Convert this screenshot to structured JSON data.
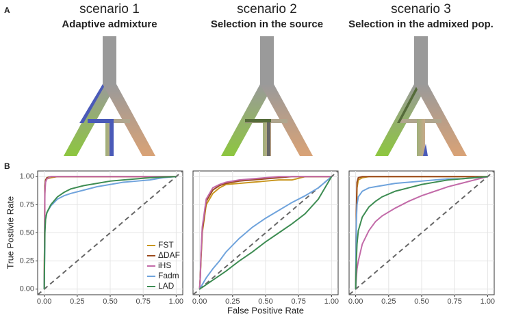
{
  "figure": {
    "panel_a": "A",
    "panel_b": "B",
    "x_label": "False Positive Rate",
    "y_label": "True Postivie Rate",
    "scenarios": [
      {
        "name": "scenario 1",
        "subtitle": "Adaptive admixture"
      },
      {
        "name": "scenario 2",
        "subtitle": "Selection in the source"
      },
      {
        "name": "scenario 3",
        "subtitle": "Selection in the admixed pop."
      }
    ]
  },
  "chart_data": [
    {
      "type": "line",
      "legend": "bottom-right",
      "grid": true,
      "x": [
        0,
        0.005,
        0.01,
        0.02,
        0.05,
        0.1,
        0.15,
        0.2,
        0.3,
        0.4,
        0.5,
        0.6,
        0.7,
        0.8,
        0.9,
        1.0
      ],
      "xlim": [
        -0.05,
        1.05
      ],
      "ylim": [
        -0.05,
        1.05
      ],
      "xticks": [
        {
          "value": 0,
          "label": "0.00"
        },
        {
          "value": 0.25,
          "label": "0.25"
        },
        {
          "value": 0.5,
          "label": "0.50"
        },
        {
          "value": 0.75,
          "label": "0.75"
        },
        {
          "value": 1,
          "label": "1.00"
        }
      ],
      "yticks": [
        {
          "value": 0,
          "label": "0.00"
        },
        {
          "value": 0.25,
          "label": "0.25"
        },
        {
          "value": 0.5,
          "label": "0.50"
        },
        {
          "value": 0.75,
          "label": "0.75"
        },
        {
          "value": 1,
          "label": "1.00"
        }
      ],
      "series": [
        {
          "name": "FST",
          "color": "#c9961f",
          "values": [
            0,
            0.9,
            0.96,
            0.98,
            0.99,
            1,
            1,
            1,
            1,
            1,
            1,
            1,
            1,
            1,
            1,
            1
          ]
        },
        {
          "name": "ΔDAF",
          "color": "#9b4a1c",
          "values": [
            0,
            0.92,
            0.97,
            0.99,
            1,
            1,
            1,
            1,
            1,
            1,
            1,
            1,
            1,
            1,
            1,
            1
          ]
        },
        {
          "name": "iHS",
          "color": "#c26aa8",
          "values": [
            0,
            0.85,
            0.95,
            0.98,
            1,
            1,
            1,
            1,
            1,
            1,
            1,
            1,
            1,
            1,
            1,
            1
          ]
        },
        {
          "name": "Fadm",
          "color": "#6fa3dc",
          "values": [
            0,
            0.55,
            0.63,
            0.68,
            0.74,
            0.8,
            0.83,
            0.85,
            0.88,
            0.91,
            0.93,
            0.95,
            0.96,
            0.97,
            0.99,
            1
          ]
        },
        {
          "name": "LAD",
          "color": "#3d8c52",
          "values": [
            0,
            0.5,
            0.62,
            0.68,
            0.75,
            0.82,
            0.86,
            0.89,
            0.92,
            0.94,
            0.96,
            0.97,
            0.98,
            0.99,
            0.995,
            1
          ]
        }
      ]
    },
    {
      "type": "line",
      "grid": true,
      "x": [
        0,
        0.005,
        0.01,
        0.02,
        0.05,
        0.1,
        0.15,
        0.2,
        0.3,
        0.4,
        0.5,
        0.6,
        0.7,
        0.8,
        0.9,
        1.0
      ],
      "xlim": [
        -0.05,
        1.05
      ],
      "ylim": [
        -0.05,
        1.05
      ],
      "xticks": [
        {
          "value": 0,
          "label": "0.00"
        },
        {
          "value": 0.25,
          "label": "0.25"
        },
        {
          "value": 0.5,
          "label": "0.50"
        },
        {
          "value": 0.75,
          "label": "0.75"
        },
        {
          "value": 1,
          "label": "1.00"
        }
      ],
      "series": [
        {
          "color": "#c9961f",
          "values": [
            0,
            0.1,
            0.25,
            0.5,
            0.75,
            0.85,
            0.9,
            0.93,
            0.94,
            0.95,
            0.96,
            0.97,
            0.97,
            1,
            1,
            1
          ]
        },
        {
          "color": "#9b4a1c",
          "values": [
            0,
            0.1,
            0.28,
            0.52,
            0.78,
            0.88,
            0.92,
            0.94,
            0.96,
            0.97,
            0.98,
            0.99,
            1,
            1,
            1,
            1
          ]
        },
        {
          "color": "#c26aa8",
          "values": [
            0,
            0.1,
            0.3,
            0.55,
            0.8,
            0.9,
            0.93,
            0.95,
            0.97,
            0.98,
            0.99,
            1,
            1,
            1,
            1,
            1
          ]
        },
        {
          "color": "#6fa3dc",
          "values": [
            0,
            0.01,
            0.02,
            0.04,
            0.1,
            0.18,
            0.25,
            0.33,
            0.45,
            0.55,
            0.63,
            0.7,
            0.77,
            0.83,
            0.9,
            1
          ]
        },
        {
          "color": "#3d8c52",
          "values": [
            0,
            0.005,
            0.01,
            0.015,
            0.04,
            0.08,
            0.12,
            0.16,
            0.25,
            0.33,
            0.42,
            0.5,
            0.58,
            0.67,
            0.8,
            1
          ]
        }
      ]
    },
    {
      "type": "line",
      "grid": true,
      "x": [
        0,
        0.005,
        0.01,
        0.02,
        0.05,
        0.1,
        0.15,
        0.2,
        0.3,
        0.4,
        0.5,
        0.6,
        0.7,
        0.8,
        0.9,
        1.0
      ],
      "xlim": [
        -0.05,
        1.05
      ],
      "ylim": [
        -0.05,
        1.05
      ],
      "xticks": [
        {
          "value": 0,
          "label": "0.00"
        },
        {
          "value": 0.25,
          "label": "0.25"
        },
        {
          "value": 0.5,
          "label": "0.50"
        },
        {
          "value": 0.75,
          "label": "0.75"
        },
        {
          "value": 1,
          "label": "1.00"
        }
      ],
      "series": [
        {
          "color": "#c9961f",
          "values": [
            0,
            0.6,
            0.9,
            0.97,
            0.99,
            1,
            1,
            1,
            1,
            1,
            1,
            1,
            1,
            1,
            1,
            1
          ]
        },
        {
          "color": "#9b4a1c",
          "values": [
            0,
            0.7,
            0.95,
            0.99,
            1,
            1,
            1,
            1,
            1,
            1,
            1,
            1,
            1,
            1,
            1,
            1
          ]
        },
        {
          "color": "#c26aa8",
          "values": [
            0,
            0.1,
            0.18,
            0.25,
            0.4,
            0.52,
            0.6,
            0.65,
            0.72,
            0.78,
            0.83,
            0.87,
            0.91,
            0.94,
            0.97,
            1
          ]
        },
        {
          "color": "#6fa3dc",
          "values": [
            0,
            0.6,
            0.75,
            0.82,
            0.87,
            0.9,
            0.91,
            0.92,
            0.94,
            0.95,
            0.96,
            0.97,
            0.98,
            0.98,
            0.99,
            1
          ]
        },
        {
          "color": "#3d8c52",
          "values": [
            0,
            0.25,
            0.4,
            0.52,
            0.64,
            0.73,
            0.78,
            0.82,
            0.87,
            0.9,
            0.93,
            0.95,
            0.97,
            0.98,
            0.99,
            1
          ]
        }
      ]
    }
  ]
}
